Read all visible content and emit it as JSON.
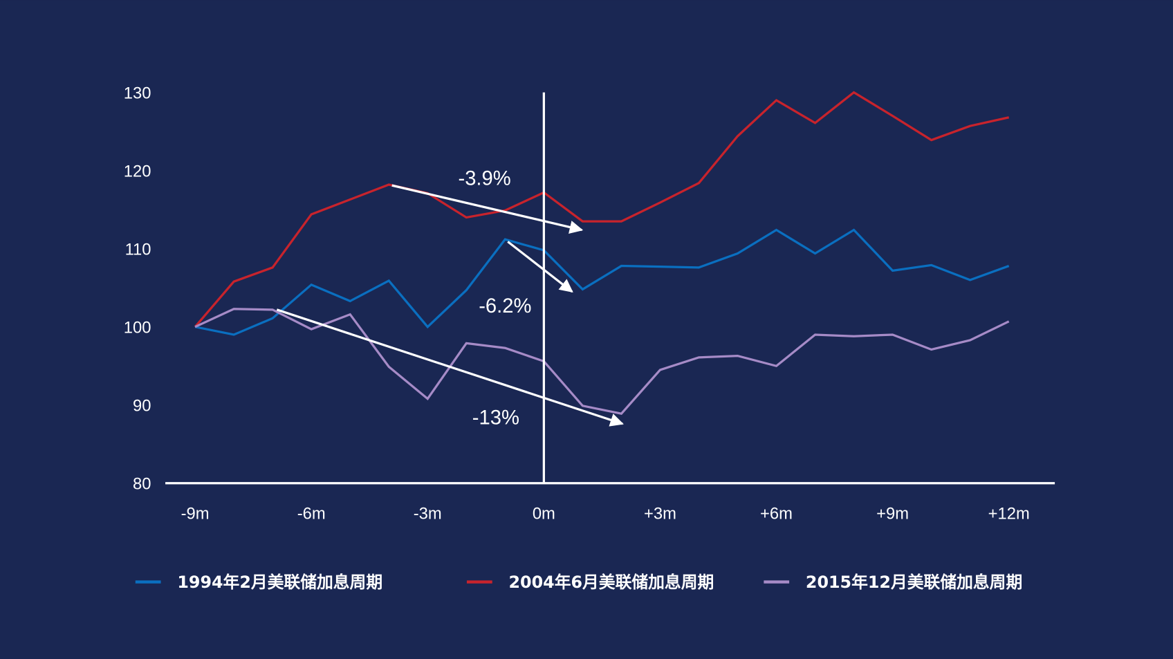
{
  "chart_data": {
    "type": "line",
    "title": "",
    "xlabel": "",
    "ylabel": "",
    "x": [
      -9,
      -8,
      -7,
      -6,
      -5,
      -4,
      -3,
      -2,
      -1,
      0,
      1,
      2,
      3,
      4,
      5,
      6,
      7,
      8,
      9,
      10,
      11,
      12
    ],
    "xticks": [
      {
        "value": -9,
        "label": "-9m"
      },
      {
        "value": -6,
        "label": "-6m"
      },
      {
        "value": -3,
        "label": "-3m"
      },
      {
        "value": 0,
        "label": "0m"
      },
      {
        "value": 3,
        "label": "+3m"
      },
      {
        "value": 6,
        "label": "+6m"
      },
      {
        "value": 9,
        "label": "+9m"
      },
      {
        "value": 12,
        "label": "+12m"
      }
    ],
    "yticks": [
      80,
      90,
      100,
      110,
      120,
      130
    ],
    "ylim": [
      80,
      130
    ],
    "grid": false,
    "legend_position": "bottom",
    "reference_line_x": 0,
    "series": [
      {
        "name": "1994年2月美联储加息周期",
        "color": "#0a6fc0",
        "values": [
          100,
          99.0,
          101.1,
          105.4,
          103.3,
          105.9,
          100.0,
          104.7,
          111.2,
          109.8,
          104.8,
          107.8,
          107.7,
          107.6,
          109.4,
          112.4,
          109.4,
          112.4,
          107.2,
          107.9,
          106.0,
          107.8
        ]
      },
      {
        "name": "2004年6月美联储加息周期",
        "color": "#c8232c",
        "values": [
          100,
          105.8,
          107.6,
          114.4,
          116.3,
          118.2,
          117.1,
          114.0,
          114.9,
          117.2,
          113.5,
          113.5,
          115.9,
          118.4,
          124.4,
          129.0,
          126.1,
          130.0,
          127.0,
          123.9,
          125.7,
          126.8
        ]
      },
      {
        "name": "2015年12月美联储加息周期",
        "color": "#a68bc7",
        "values": [
          100,
          102.3,
          102.2,
          99.7,
          101.6,
          94.9,
          90.8,
          97.9,
          97.3,
          95.6,
          89.9,
          88.9,
          94.5,
          96.1,
          96.3,
          95.0,
          99.0,
          98.8,
          99.0,
          97.1,
          98.3,
          100.7
        ]
      }
    ],
    "annotations": [
      {
        "label": "-3.9%",
        "label_at": [
          -1.53,
          119.1
        ],
        "arrow_from": [
          -3.92,
          118.1
        ],
        "arrow_to": [
          0.98,
          112.4
        ]
      },
      {
        "label": "-6.2%",
        "label_at": [
          -1.0,
          102.8
        ],
        "arrow_from": [
          -0.93,
          110.9
        ],
        "arrow_to": [
          0.73,
          104.5
        ]
      },
      {
        "label": "-13%",
        "label_at": [
          -1.24,
          88.5
        ],
        "arrow_from": [
          -6.89,
          102.2
        ],
        "arrow_to": [
          2.03,
          87.6
        ]
      }
    ]
  },
  "colors": {
    "background": "#1a2753",
    "axis": "#ffffff"
  }
}
